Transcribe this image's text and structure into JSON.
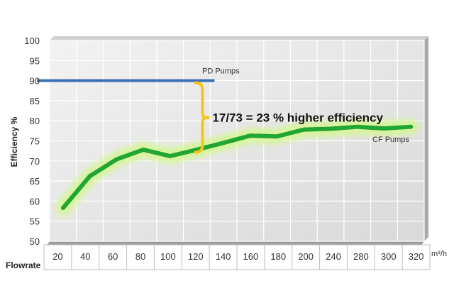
{
  "chart_data": {
    "type": "line",
    "title": "",
    "xlabel": "Flowrate",
    "x_unit": "m³/h",
    "ylabel": "Efficiency %",
    "categories": [
      "20",
      "40",
      "60",
      "80",
      "100",
      "120",
      "140",
      "160",
      "180",
      "200",
      "240",
      "280",
      "300",
      "320"
    ],
    "ylim": [
      50,
      100
    ],
    "yticks": [
      50,
      55,
      60,
      65,
      70,
      75,
      80,
      85,
      90,
      95,
      100
    ],
    "grid": true,
    "series": [
      {
        "name": "PD Pumps",
        "color": "#3f6fb5",
        "glow": "#8fb4ff",
        "values": [
          90,
          90,
          90,
          90,
          90,
          90,
          null,
          null,
          null,
          null,
          null,
          null,
          null,
          null
        ]
      },
      {
        "name": "CF Pumps",
        "color": "#22a532",
        "glow": "#d6f59a",
        "values": [
          58.3,
          66.2,
          70.4,
          72.8,
          71.2,
          72.8,
          74.5,
          76.3,
          76.1,
          77.8,
          78.0,
          78.5,
          78.1,
          78.5
        ]
      }
    ],
    "annotation": {
      "text": "17/73 = 23 % higher efficiency",
      "x_category": "120",
      "y_from": 90,
      "y_to": 72.5,
      "color": "#f5c518"
    }
  }
}
